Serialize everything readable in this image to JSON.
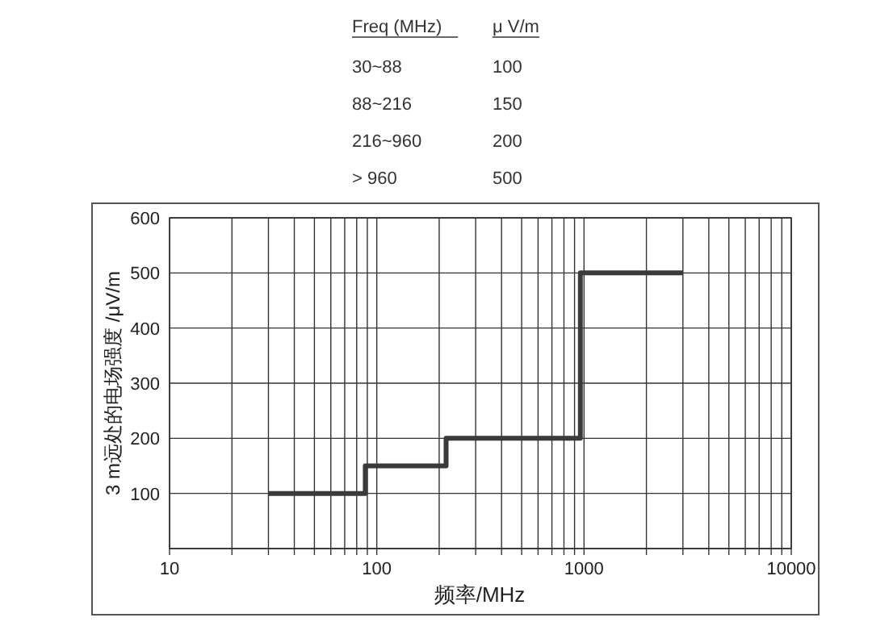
{
  "chart_data": {
    "type": "step",
    "xlabel": "频率/MHz",
    "ylabel": "3 m远处的电场强度 /μV/m",
    "annotations": [
      "Freq (MHz)",
      "μ  V/m",
      "30~88",
      "100",
      "88~216",
      "150",
      "216~960",
      "200",
      "> 960",
      "500"
    ],
    "x": [
      30,
      88,
      216,
      960,
      3000
    ],
    "series": [
      {
        "color": "#3a3a3a",
        "values": [
          100,
          150,
          200,
          500,
          500
        ]
      }
    ],
    "log": "x",
    "xlim": [
      10,
      10000
    ],
    "ylim": [
      0,
      600
    ],
    "xticks": [
      10,
      {
        "value": 20,
        "label": null
      },
      {
        "value": 30,
        "label": null
      },
      {
        "value": 40,
        "label": null
      },
      {
        "value": 50,
        "label": null
      },
      {
        "value": 60,
        "label": null
      },
      {
        "value": 70,
        "label": null
      },
      {
        "value": 80,
        "label": null
      },
      {
        "value": 90,
        "label": null
      },
      100,
      {
        "value": 200,
        "label": null
      },
      {
        "value": 300,
        "label": null
      },
      {
        "value": 400,
        "label": null
      },
      {
        "value": 500,
        "label": null
      },
      {
        "value": 600,
        "label": null
      },
      {
        "value": 700,
        "label": null
      },
      {
        "value": 800,
        "label": null
      },
      {
        "value": 900,
        "label": null
      },
      1000,
      {
        "value": 2000,
        "label": null
      },
      {
        "value": 3000,
        "label": null
      },
      {
        "value": 4000,
        "label": null
      },
      {
        "value": 5000,
        "label": null
      },
      {
        "value": 6000,
        "label": null
      },
      {
        "value": 7000,
        "label": null
      },
      {
        "value": 8000,
        "label": null
      },
      {
        "value": 9000,
        "label": null
      },
      10000
    ],
    "yticks": [
      {
        "value": 0,
        "label": null
      },
      100,
      200,
      300,
      400,
      500,
      600
    ],
    "grid": true,
    "line_style": "solid"
  }
}
